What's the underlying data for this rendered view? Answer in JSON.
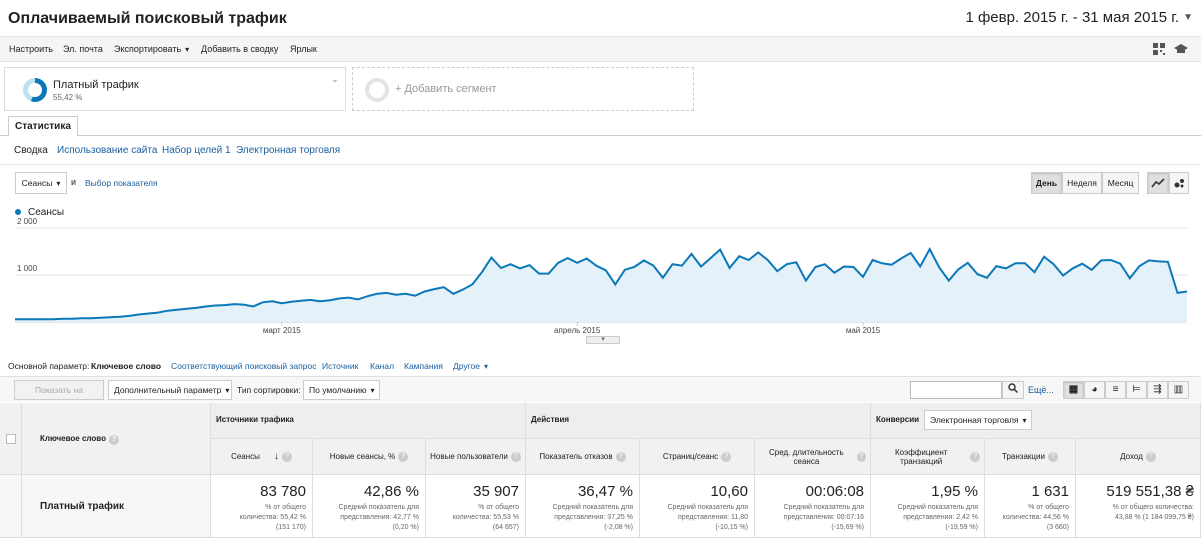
{
  "header": {
    "title": "Оплачиваемый поисковый трафик",
    "date_range": "1 февр. 2015 г. - 31 мая 2015 г."
  },
  "toolbar": {
    "items": [
      "Настроить",
      "Эл. почта",
      "Экспортировать",
      "Добавить в сводку",
      "Ярлык"
    ]
  },
  "segments": {
    "active_name": "Платный трафик",
    "active_pct": "55,42 %",
    "add_label": "+ Добавить сегмент"
  },
  "tabs": {
    "main": "Статистика"
  },
  "subtabs": [
    "Сводка",
    "Использование сайта",
    "Набор целей 1",
    "Электронная торговля"
  ],
  "chart_controls": {
    "metric": "Сеансы",
    "and": "и",
    "select_metric": "Выбор показателя",
    "day": "День",
    "week": "Неделя",
    "month": "Месяц"
  },
  "chart_data": {
    "type": "area",
    "series": [
      {
        "name": "Сеансы",
        "values": [
          60,
          60,
          60,
          60,
          60,
          70,
          70,
          80,
          80,
          90,
          100,
          110,
          130,
          160,
          180,
          200,
          240,
          260,
          280,
          300,
          330,
          350,
          360,
          380,
          370,
          330,
          420,
          440,
          400,
          430,
          450,
          470,
          440,
          460,
          500,
          520,
          480,
          550,
          600,
          620,
          580,
          600,
          560,
          650,
          700,
          740,
          600,
          690,
          800,
          1060,
          1370,
          1150,
          1230,
          1140,
          1210,
          1030,
          1030,
          1260,
          1360,
          1260,
          1350,
          1200,
          1100,
          800,
          1110,
          1170,
          1310,
          1200,
          940,
          1230,
          1200,
          1450,
          1180,
          1360,
          1540,
          1150,
          1400,
          1320,
          1480,
          1320,
          1080,
          1230,
          1270,
          880,
          1170,
          1230,
          1050,
          1180,
          1170,
          960,
          1320,
          1250,
          1220,
          1350,
          1470,
          1180,
          1550,
          1160,
          880,
          1120,
          1260,
          1020,
          940,
          1190,
          1140,
          1250,
          1250,
          1060,
          1390,
          1230,
          990,
          1140,
          1240,
          1110,
          1310,
          1320,
          1240,
          930,
          1190,
          1310,
          1290,
          1280,
          620,
          650
        ]
      }
    ],
    "y_ticks": [
      "2 000",
      "1 000"
    ],
    "x_labels": [
      "март 2015",
      "апрель 2015",
      "май 2015"
    ],
    "ylim": [
      0,
      2000
    ]
  },
  "dimension_bar": {
    "label": "Основной параметр:",
    "active": "Ключевое слово",
    "links": [
      "Соответствующий поисковый запрос",
      "Источник",
      "Канал",
      "Кампания",
      "Другое"
    ]
  },
  "filter_bar": {
    "show_on_chart": "Показать на диаграмме",
    "secondary": "Дополнительный параметр",
    "sort_label": "Тип сортировки:",
    "sort_value": "По умолчанию",
    "search_value": "",
    "more": "Ещё..."
  },
  "table": {
    "first_col_header": "Ключевое слово",
    "groups": {
      "traffic": "Источники трафика",
      "actions": "Действия",
      "conversions": "Конверсии",
      "conv_select": "Электронная торговля"
    },
    "columns": [
      "Сеансы",
      "Новые сеансы, %",
      "Новые пользователи",
      "Показатель отказов",
      "Страниц/сеанс",
      "Сред. длительность сеанса",
      "Коэффициент транзакций",
      "Транзакции",
      "Доход"
    ],
    "row": {
      "label": "Платный трафик",
      "values": [
        "83 780",
        "42,86 %",
        "35 907",
        "36,47 %",
        "10,60",
        "00:06:08",
        "1,95 %",
        "1 631",
        "519 551,38 ₴"
      ],
      "notes1": [
        "% от общего",
        "Средний показатель для",
        "% от общего",
        "Средний показатель для",
        "Средний показатель для",
        "Средний показатель для",
        "Средний показатель для",
        "% от общего",
        "% от общего количества:"
      ],
      "notes2": [
        "количества: 55,42 %",
        "представления: 42,77 %",
        "количества: 55,53 %",
        "представления: 37,25 %",
        "представления: 11,80",
        "представления: 00:07:16",
        "представления: 2,42 %",
        "количества: 44,56 %",
        "43,88 % (1 184 099,75 ₴)"
      ],
      "notes3": [
        "(151 170)",
        "(0,20 %)",
        "(64 657)",
        "(-2,08 %)",
        "(-10,15 %)",
        "(-15,69 %)",
        "(-19,59 %)",
        "(3 660)",
        ""
      ]
    }
  }
}
